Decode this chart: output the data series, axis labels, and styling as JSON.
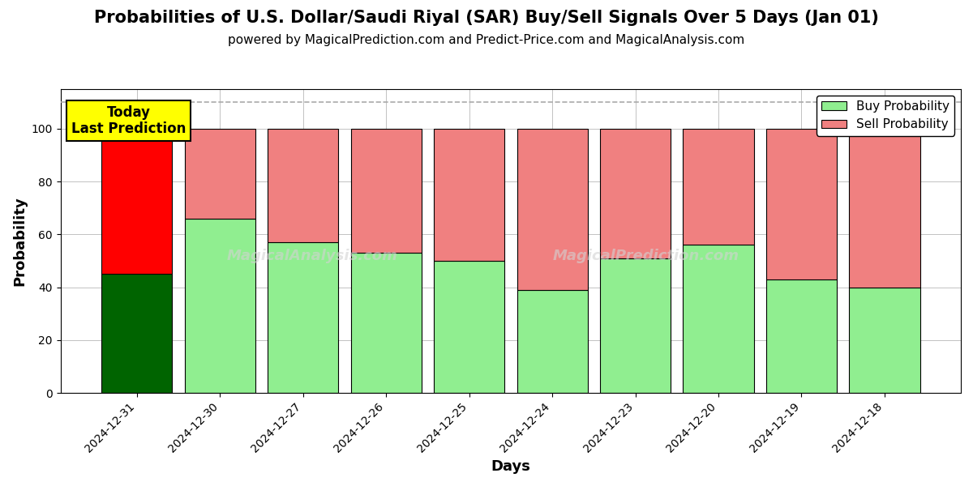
{
  "title": "Probabilities of U.S. Dollar/Saudi Riyal (SAR) Buy/Sell Signals Over 5 Days (Jan 01)",
  "subtitle": "powered by MagicalPrediction.com and Predict-Price.com and MagicalAnalysis.com",
  "xlabel": "Days",
  "ylabel": "Probability",
  "watermark_left": "MagicalAnalysis.com",
  "watermark_right": "MagicalPrediction.com",
  "categories": [
    "2024-12-31",
    "2024-12-30",
    "2024-12-27",
    "2024-12-26",
    "2024-12-25",
    "2024-12-24",
    "2024-12-23",
    "2024-12-20",
    "2024-12-19",
    "2024-12-18"
  ],
  "buy_values": [
    45,
    66,
    57,
    53,
    50,
    39,
    51,
    56,
    43,
    40
  ],
  "sell_values": [
    55,
    34,
    43,
    47,
    50,
    61,
    49,
    44,
    57,
    60
  ],
  "today_bar_buy_color": "#006400",
  "today_bar_sell_color": "#ff0000",
  "normal_bar_buy_color": "#90EE90",
  "normal_bar_sell_color": "#f08080",
  "today_annotation_bg": "#ffff00",
  "today_annotation_text": "Today\nLast Prediction",
  "dashed_line_y": 110,
  "ylim": [
    0,
    115
  ],
  "yticks": [
    0,
    20,
    40,
    60,
    80,
    100
  ],
  "legend_buy_label": "Buy Probability",
  "legend_sell_label": "Sell Probability",
  "title_fontsize": 15,
  "subtitle_fontsize": 11,
  "axis_label_fontsize": 13,
  "tick_fontsize": 10,
  "legend_fontsize": 11,
  "bar_edgecolor": "#000000",
  "bar_linewidth": 0.8,
  "bar_width": 0.85,
  "grid_color": "#aaaaaa",
  "grid_linewidth": 0.5
}
